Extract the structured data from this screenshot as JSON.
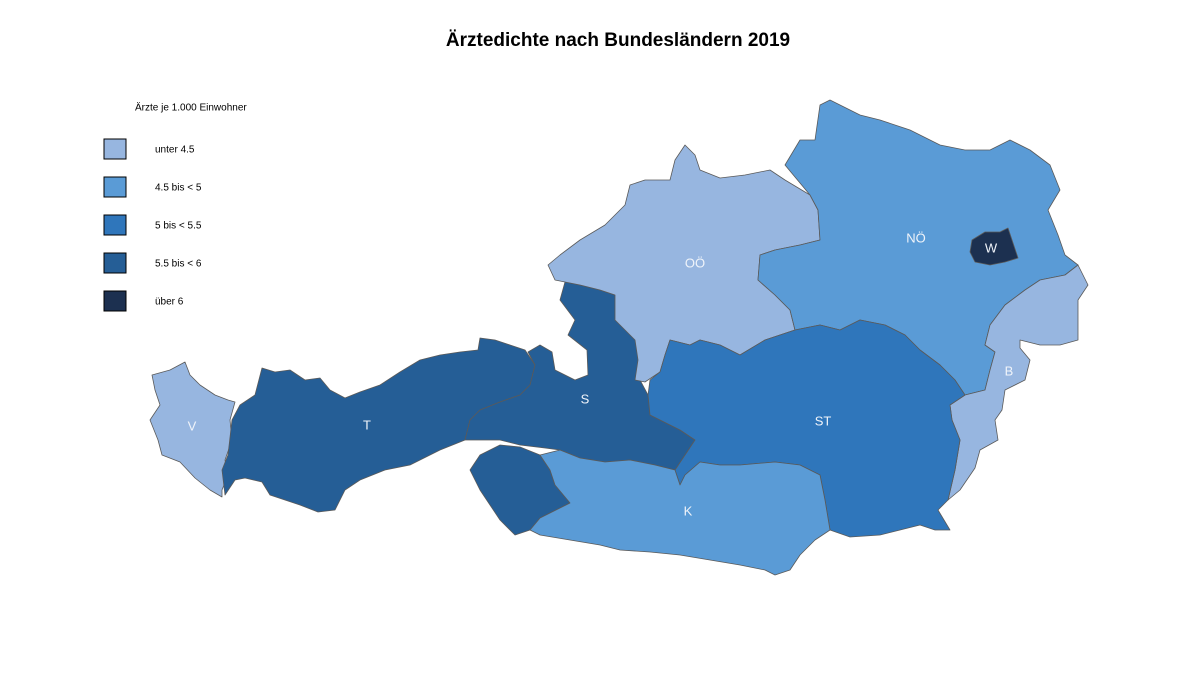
{
  "title": "Ärztedichte nach Bundesländern 2019",
  "legend": {
    "title": "Ärzte je 1.000 Einwohner",
    "items": [
      {
        "label": "unter 4.5",
        "color": "#97b6e0"
      },
      {
        "label": "4.5  bis < 5",
        "color": "#5a9bd6"
      },
      {
        "label": "5  bis < 5.5",
        "color": "#2f76bb"
      },
      {
        "label": "5.5  bis < 6",
        "color": "#255e96"
      },
      {
        "label": "über 6",
        "color": "#1c3050"
      }
    ]
  },
  "regions": [
    {
      "label": "V",
      "color": "#97b6e0"
    },
    {
      "label": "T",
      "color": "#255e96"
    },
    {
      "label": "S",
      "color": "#255e96"
    },
    {
      "label": "OÖ",
      "color": "#97b6e0"
    },
    {
      "label": "NÖ",
      "color": "#5a9bd6"
    },
    {
      "label": "W",
      "color": "#1c3050"
    },
    {
      "label": "B",
      "color": "#97b6e0"
    },
    {
      "label": "ST",
      "color": "#2f76bb"
    },
    {
      "label": "K",
      "color": "#5a9bd6"
    }
  ]
}
